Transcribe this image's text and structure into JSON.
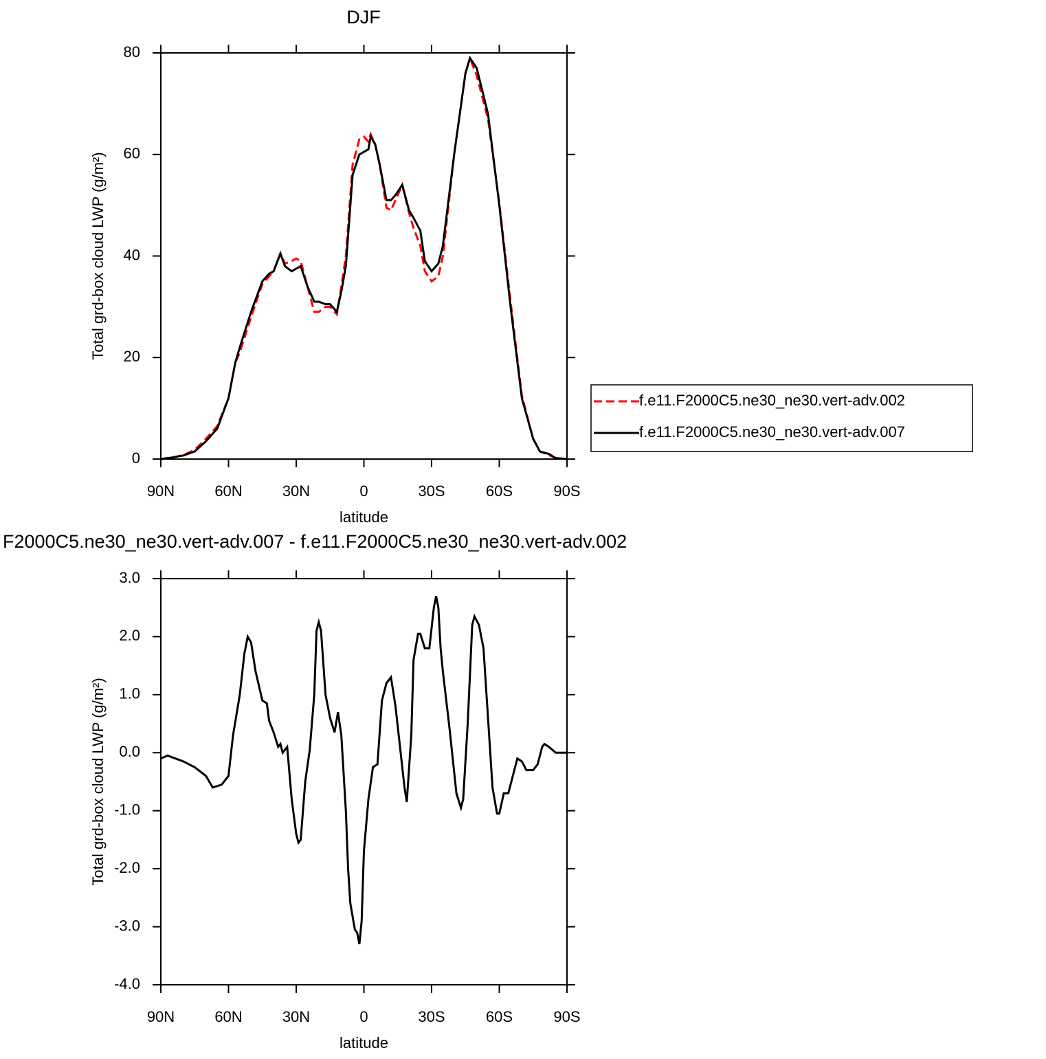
{
  "chart_data": [
    {
      "type": "line",
      "title": "DJF",
      "xlabel": "latitude",
      "ylabel": "Total grd-box cloud LWP (g/m²)",
      "xlim": [
        90,
        -90
      ],
      "xticks": [
        {
          "value": 90,
          "label": "90N"
        },
        {
          "value": 60,
          "label": "60N"
        },
        {
          "value": 30,
          "label": "30N"
        },
        0,
        {
          "value": -30,
          "label": "30S"
        },
        {
          "value": -60,
          "label": "60S"
        },
        {
          "value": -90,
          "label": "90S"
        }
      ],
      "ylim": [
        0,
        80
      ],
      "yticks": [
        0,
        20,
        40,
        60,
        80
      ],
      "legend": "right",
      "x": [
        90,
        85,
        80,
        75,
        70,
        65,
        60,
        57,
        55,
        50,
        45,
        42,
        40,
        37,
        35,
        32,
        30,
        28,
        25,
        22,
        20,
        17,
        15,
        12,
        10,
        8,
        5,
        2,
        0,
        -2,
        -3,
        -5,
        -7,
        -10,
        -12,
        -14,
        -17,
        -20,
        -22,
        -25,
        -27,
        -30,
        -33,
        -35,
        -40,
        -45,
        -47,
        -50,
        -55,
        -60,
        -65,
        -70,
        -75,
        -78,
        -82,
        -85,
        -90
      ],
      "series": [
        {
          "name": "f.e11.F2000C5.ne30_ne30.vert-adv.002",
          "color": "#ff0000",
          "dashed": true,
          "values": [
            0,
            0.3,
            0.8,
            1.8,
            4,
            6.5,
            12,
            19,
            21,
            28,
            34.5,
            36,
            37,
            40.5,
            38.5,
            39,
            39.5,
            39,
            34,
            29,
            29,
            30,
            30,
            28.5,
            34,
            40,
            58,
            63,
            63.5,
            62.5,
            64,
            62,
            58,
            49.5,
            49,
            51,
            54,
            48.5,
            45.5,
            42,
            37,
            35,
            36,
            40,
            60,
            76,
            79,
            75.5,
            67,
            50.5,
            31,
            12.5,
            4,
            1.5,
            0.8,
            0.2,
            0
          ]
        },
        {
          "name": "f.e11.F2000C5.ne30_ne30.vert-adv.007",
          "color": "#000000",
          "dashed": false,
          "values": [
            0,
            0.3,
            0.7,
            1.5,
            3.5,
            6,
            12,
            19,
            22,
            29,
            35,
            36.5,
            37,
            40.5,
            38,
            37,
            37.5,
            38,
            34,
            31,
            31,
            30.5,
            30.5,
            29,
            33,
            38,
            56,
            60,
            60.5,
            61,
            63.5,
            62,
            58,
            51,
            51,
            52,
            54,
            49,
            47.5,
            45,
            39,
            37,
            38.5,
            42,
            60,
            76,
            79,
            77,
            68,
            50,
            30,
            12,
            4,
            1.5,
            1,
            0.2,
            0
          ]
        }
      ]
    },
    {
      "type": "line",
      "title": "F2000C5.ne30_ne30.vert-adv.007 - f.e11.F2000C5.ne30_ne30.vert-adv.002",
      "xlabel": "latitude",
      "ylabel": "Total grd-box cloud LWP (g/m²)",
      "xlim": [
        90,
        -90
      ],
      "xticks": [
        {
          "value": 90,
          "label": "90N"
        },
        {
          "value": 60,
          "label": "60N"
        },
        {
          "value": 30,
          "label": "30N"
        },
        0,
        {
          "value": -30,
          "label": "30S"
        },
        {
          "value": -60,
          "label": "60S"
        },
        {
          "value": -90,
          "label": "90S"
        }
      ],
      "ylim": [
        -4,
        3
      ],
      "yticks": [
        {
          "value": -4,
          "label": "-4.0"
        },
        {
          "value": -3,
          "label": "-3.0"
        },
        {
          "value": -2,
          "label": "-2.0"
        },
        {
          "value": -1,
          "label": "-1.0"
        },
        {
          "value": 0,
          "label": "0.0"
        },
        {
          "value": 1,
          "label": "1.0"
        },
        {
          "value": 2,
          "label": "2.0"
        },
        {
          "value": 3,
          "label": "3.0"
        }
      ],
      "x": [
        90,
        87,
        80,
        75,
        70,
        67,
        63,
        60,
        58,
        55,
        53,
        51.5,
        50,
        48,
        45,
        43,
        42,
        40,
        38,
        37,
        36,
        34,
        32,
        30,
        29,
        28,
        26,
        24,
        22,
        21,
        20,
        19,
        17,
        15,
        13,
        11.5,
        10,
        8,
        7,
        6,
        4,
        3,
        2,
        1,
        0,
        -2,
        -4,
        -6,
        -8,
        -10,
        -12,
        -14,
        -16,
        -18,
        -19,
        -21,
        -22,
        -24,
        -25,
        -27,
        -29,
        -31,
        -32,
        -33,
        -34,
        -35,
        -38,
        -41,
        -43,
        -44,
        -46,
        -48,
        -49,
        -51,
        -53,
        -55,
        -57,
        -59,
        -60,
        -62,
        -64,
        -66,
        -68,
        -70,
        -72,
        -75,
        -77,
        -79,
        -80,
        -82,
        -85,
        -90
      ],
      "series": [
        {
          "color": "#000000",
          "dashed": false,
          "values": [
            -0.1,
            -0.05,
            -0.15,
            -0.25,
            -0.4,
            -0.6,
            -0.55,
            -0.4,
            0.3,
            1.0,
            1.7,
            2.0,
            1.9,
            1.4,
            0.9,
            0.85,
            0.55,
            0.35,
            0.1,
            0.15,
            0.0,
            0.1,
            -0.8,
            -1.4,
            -1.55,
            -1.5,
            -0.5,
            0.05,
            1.0,
            2.1,
            2.25,
            2.1,
            1.0,
            0.6,
            0.35,
            0.7,
            0.3,
            -1.0,
            -2.0,
            -2.6,
            -3.05,
            -3.1,
            -3.3,
            -2.9,
            -1.7,
            -0.8,
            -0.25,
            -0.2,
            0.9,
            1.2,
            1.3,
            0.8,
            0.1,
            -0.6,
            -0.85,
            0.3,
            1.6,
            2.05,
            2.05,
            1.8,
            1.8,
            2.5,
            2.7,
            2.5,
            1.8,
            1.4,
            0.4,
            -0.7,
            -0.95,
            -0.8,
            0.5,
            2.2,
            2.35,
            2.2,
            1.8,
            0.6,
            -0.6,
            -1.05,
            -1.05,
            -0.7,
            -0.7,
            -0.4,
            -0.1,
            -0.15,
            -0.3,
            -0.3,
            -0.2,
            0.1,
            0.15,
            0.1,
            0.0,
            0.0
          ]
        }
      ]
    }
  ]
}
